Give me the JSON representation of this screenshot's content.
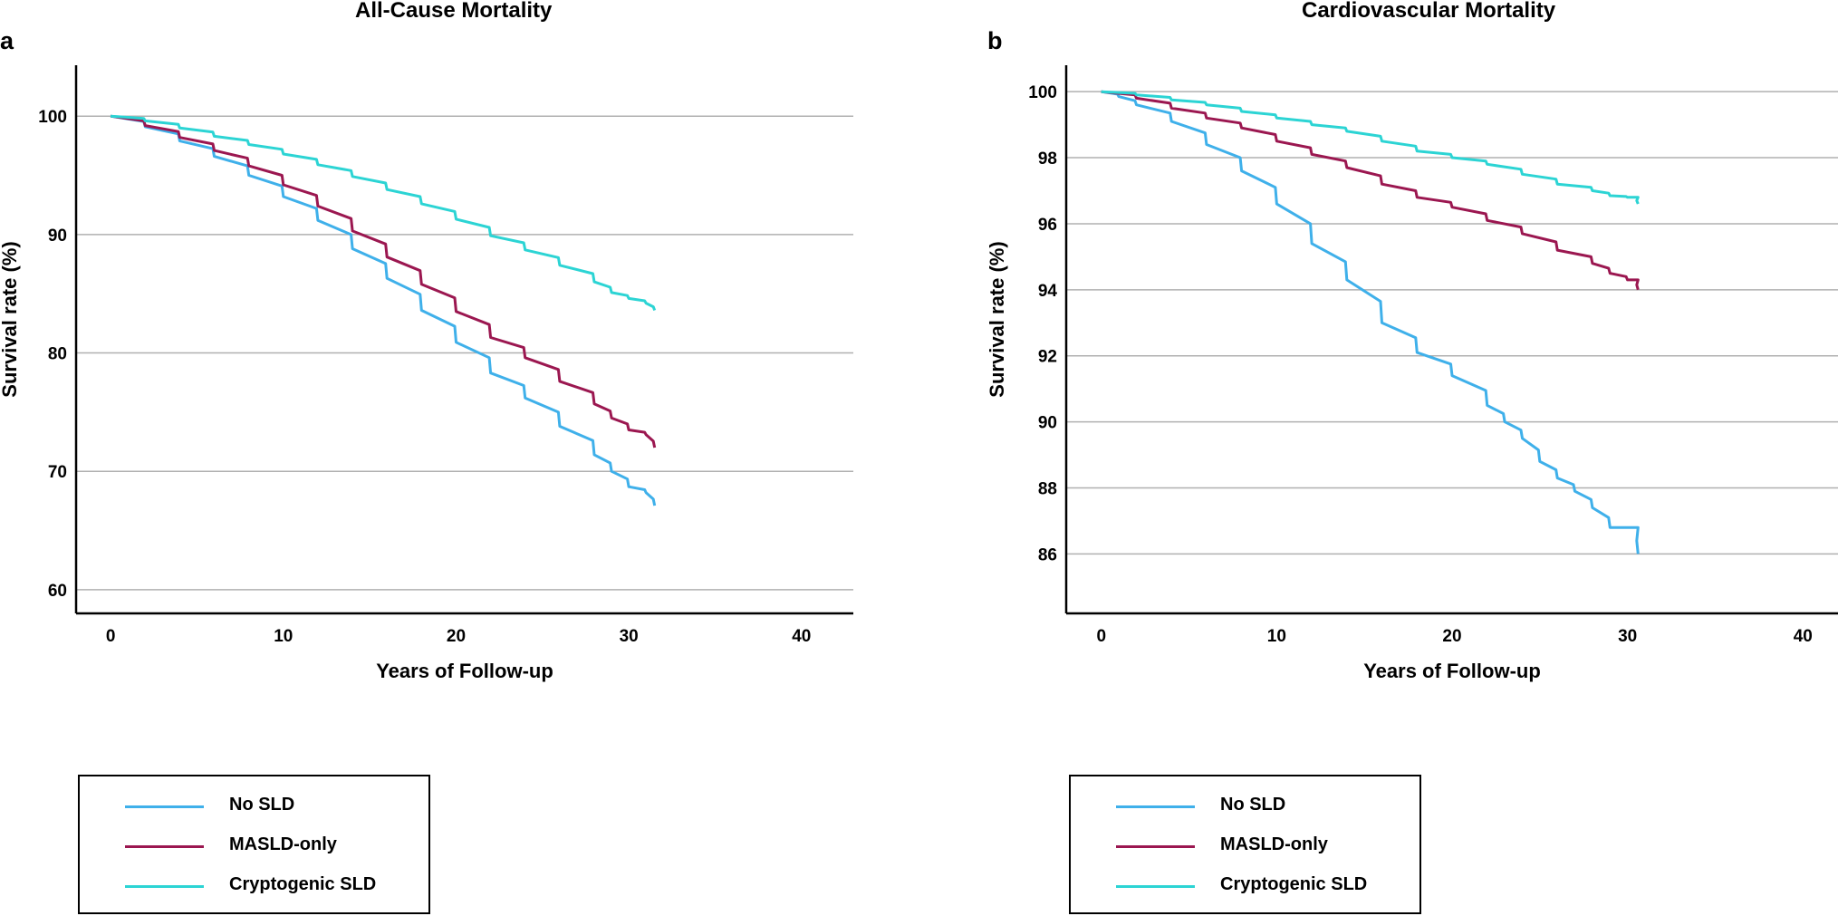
{
  "chart_data": [
    {
      "panel": "a",
      "type": "line",
      "title": "All-Cause Mortality",
      "xlabel": "Years of Follow-up",
      "ylabel": "Survival rate (%)",
      "xlim": [
        -2,
        43
      ],
      "ylim": [
        58,
        104.3
      ],
      "xticks": [
        0,
        10,
        20,
        30,
        40
      ],
      "yticks": [
        60,
        70,
        80,
        90,
        100
      ],
      "grid": "horizontal",
      "legend_position": "bottom-left, below plot",
      "series": [
        {
          "name": "No SLD",
          "color": "#3fb0ea",
          "x": [
            0,
            2,
            4,
            6,
            8,
            10,
            12,
            14,
            16,
            18,
            20,
            22,
            24,
            26,
            28,
            29,
            30,
            31,
            31.5
          ],
          "y": [
            100,
            99.1,
            97.9,
            96.6,
            95.0,
            93.2,
            91.2,
            88.8,
            86.3,
            83.6,
            80.9,
            78.3,
            76.2,
            73.8,
            71.4,
            70.0,
            68.7,
            68.2,
            67.1
          ]
        },
        {
          "name": "MASLD-only",
          "color": "#9b1750",
          "x": [
            0,
            2,
            4,
            6,
            8,
            10,
            12,
            14,
            16,
            18,
            20,
            22,
            24,
            26,
            28,
            29,
            30,
            31,
            31.5
          ],
          "y": [
            100,
            99.2,
            98.2,
            97.1,
            95.8,
            94.2,
            92.4,
            90.3,
            88.1,
            85.8,
            83.5,
            81.3,
            79.6,
            77.6,
            75.7,
            74.5,
            73.5,
            73.1,
            72.0
          ]
        },
        {
          "name": "Cryptogenic SLD",
          "color": "#2cd4d4",
          "x": [
            0,
            2,
            4,
            6,
            8,
            10,
            12,
            14,
            16,
            18,
            20,
            22,
            24,
            26,
            28,
            29,
            30,
            31,
            31.5
          ],
          "y": [
            100,
            99.6,
            99.0,
            98.3,
            97.6,
            96.8,
            95.9,
            94.9,
            93.8,
            92.6,
            91.3,
            89.9,
            88.7,
            87.4,
            86.0,
            85.1,
            84.6,
            84.2,
            83.6
          ]
        }
      ]
    },
    {
      "panel": "b",
      "type": "line",
      "title": "Cardiovascular Mortality",
      "xlabel": "Years of Follow-up",
      "ylabel": "Survival rate (%)",
      "xlim": [
        -2,
        42
      ],
      "ylim": [
        84.2,
        100.8
      ],
      "xticks": [
        0,
        10,
        20,
        30,
        40
      ],
      "yticks": [
        86,
        88,
        90,
        92,
        94,
        96,
        98,
        100
      ],
      "grid": "horizontal",
      "legend_position": "bottom-left, below plot",
      "series": [
        {
          "name": "No SLD",
          "color": "#3fb0ea",
          "x": [
            0,
            1,
            2,
            4,
            6,
            8,
            10,
            12,
            14,
            16,
            18,
            20,
            22,
            23,
            24,
            25,
            26,
            27,
            28,
            29,
            30,
            30.6,
            30.6
          ],
          "y": [
            100,
            99.85,
            99.6,
            99.1,
            98.4,
            97.6,
            96.6,
            95.4,
            94.3,
            93.0,
            92.1,
            91.4,
            90.5,
            90.0,
            89.5,
            88.8,
            88.3,
            87.9,
            87.4,
            86.8,
            86.8,
            86.8,
            86.0
          ]
        },
        {
          "name": "MASLD-only",
          "color": "#9b1750",
          "x": [
            0,
            2,
            4,
            6,
            8,
            10,
            12,
            14,
            16,
            18,
            20,
            22,
            24,
            26,
            28,
            29,
            30,
            30.6,
            30.6
          ],
          "y": [
            100,
            99.8,
            99.5,
            99.2,
            98.9,
            98.5,
            98.1,
            97.7,
            97.2,
            96.8,
            96.5,
            96.1,
            95.7,
            95.2,
            94.8,
            94.5,
            94.3,
            94.3,
            94.0
          ]
        },
        {
          "name": "Cryptogenic SLD",
          "color": "#2cd4d4",
          "x": [
            0,
            2,
            4,
            6,
            8,
            10,
            12,
            14,
            16,
            18,
            20,
            22,
            24,
            26,
            28,
            29,
            30,
            30.6,
            30.6
          ],
          "y": [
            100,
            99.9,
            99.75,
            99.6,
            99.4,
            99.2,
            99.0,
            98.8,
            98.5,
            98.2,
            98.0,
            97.8,
            97.5,
            97.2,
            97.0,
            96.85,
            96.8,
            96.8,
            96.6
          ]
        }
      ]
    }
  ]
}
